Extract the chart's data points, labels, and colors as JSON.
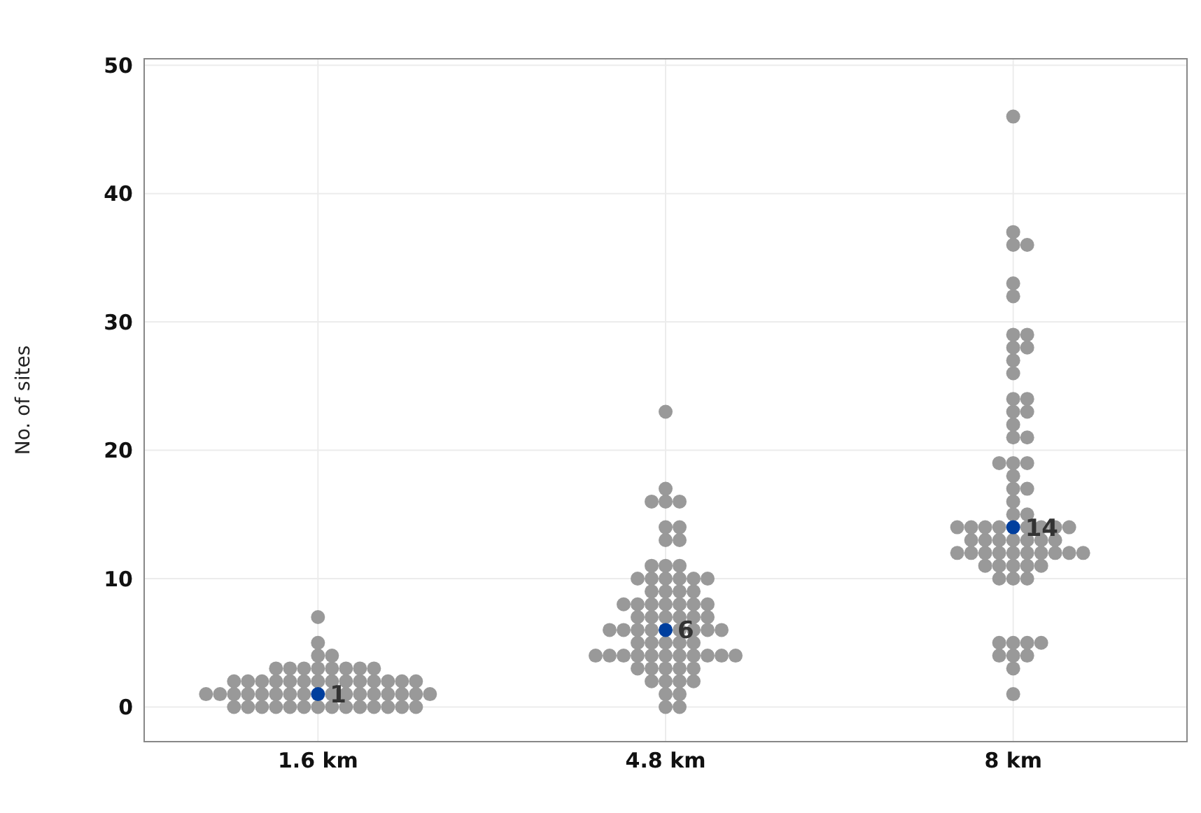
{
  "chart_data": {
    "type": "scatter",
    "ylabel": "No. of sites",
    "categories": [
      "1.6 km",
      "4.8 km",
      "8 km"
    ],
    "ylim": [
      -2.7,
      50.5
    ],
    "yticks": [
      0,
      10,
      20,
      30,
      40,
      50
    ],
    "grid": true,
    "marker": "circle",
    "series": [
      {
        "color": "#999999",
        "x": [
          "1.6 km",
          "1.6 km",
          "1.6 km",
          "1.6 km",
          "1.6 km",
          "1.6 km",
          "1.6 km",
          "1.6 km",
          "1.6 km",
          "1.6 km",
          "1.6 km",
          "1.6 km",
          "1.6 km",
          "1.6 km",
          "1.6 km",
          "1.6 km",
          "1.6 km",
          "1.6 km",
          "1.6 km",
          "1.6 km",
          "1.6 km",
          "1.6 km",
          "1.6 km",
          "1.6 km",
          "1.6 km",
          "1.6 km",
          "1.6 km",
          "1.6 km",
          "1.6 km",
          "1.6 km",
          "1.6 km",
          "1.6 km",
          "1.6 km",
          "1.6 km",
          "1.6 km",
          "1.6 km",
          "1.6 km",
          "1.6 km",
          "1.6 km",
          "1.6 km",
          "1.6 km",
          "1.6 km",
          "1.6 km",
          "1.6 km",
          "1.6 km",
          "1.6 km",
          "1.6 km",
          "1.6 km",
          "1.6 km",
          "1.6 km",
          "1.6 km",
          "1.6 km",
          "1.6 km",
          "1.6 km",
          "1.6 km",
          "1.6 km"
        ],
        "values": [
          0,
          0,
          0,
          0,
          0,
          0,
          0,
          0,
          0,
          0,
          0,
          0,
          0,
          0,
          1,
          1,
          1,
          1,
          1,
          1,
          1,
          1,
          1,
          1,
          1,
          1,
          1,
          1,
          1,
          1,
          2,
          2,
          2,
          2,
          2,
          2,
          2,
          2,
          2,
          2,
          2,
          2,
          2,
          2,
          3,
          3,
          3,
          3,
          3,
          3,
          3,
          3,
          4,
          4,
          5,
          7
        ]
      },
      {
        "color": "#999999",
        "x": [
          "4.8 km",
          "4.8 km",
          "4.8 km",
          "4.8 km",
          "4.8 km",
          "4.8 km",
          "4.8 km",
          "4.8 km",
          "4.8 km",
          "4.8 km",
          "4.8 km",
          "4.8 km",
          "4.8 km",
          "4.8 km",
          "4.8 km",
          "4.8 km",
          "4.8 km",
          "4.8 km",
          "4.8 km",
          "4.8 km",
          "4.8 km",
          "4.8 km",
          "4.8 km",
          "4.8 km",
          "4.8 km",
          "4.8 km",
          "4.8 km",
          "4.8 km",
          "4.8 km",
          "4.8 km",
          "4.8 km",
          "4.8 km",
          "4.8 km",
          "4.8 km",
          "4.8 km",
          "4.8 km",
          "4.8 km",
          "4.8 km",
          "4.8 km",
          "4.8 km",
          "4.8 km",
          "4.8 km",
          "4.8 km",
          "4.8 km",
          "4.8 km",
          "4.8 km",
          "4.8 km",
          "4.8 km",
          "4.8 km",
          "4.8 km",
          "4.8 km",
          "4.8 km",
          "4.8 km",
          "4.8 km",
          "4.8 km",
          "4.8 km",
          "4.8 km",
          "4.8 km",
          "4.8 km",
          "4.8 km",
          "4.8 km",
          "4.8 km",
          "4.8 km",
          "4.8 km",
          "4.8 km",
          "4.8 km",
          "4.8 km",
          "4.8 km",
          "4.8 km",
          "4.8 km",
          "4.8 km",
          "4.8 km"
        ],
        "values": [
          0,
          0,
          1,
          1,
          2,
          2,
          2,
          2,
          3,
          3,
          3,
          3,
          3,
          4,
          4,
          4,
          4,
          4,
          4,
          4,
          4,
          4,
          4,
          4,
          5,
          5,
          5,
          5,
          5,
          6,
          6,
          6,
          6,
          6,
          6,
          6,
          6,
          7,
          7,
          7,
          7,
          7,
          7,
          8,
          8,
          8,
          8,
          8,
          8,
          8,
          9,
          9,
          9,
          9,
          10,
          10,
          10,
          10,
          10,
          10,
          11,
          11,
          11,
          13,
          13,
          14,
          14,
          16,
          16,
          16,
          17,
          23
        ]
      },
      {
        "color": "#999999",
        "x": [
          "8 km",
          "8 km",
          "8 km",
          "8 km",
          "8 km",
          "8 km",
          "8 km",
          "8 km",
          "8 km",
          "8 km",
          "8 km",
          "8 km",
          "8 km",
          "8 km",
          "8 km",
          "8 km",
          "8 km",
          "8 km",
          "8 km",
          "8 km",
          "8 km",
          "8 km",
          "8 km",
          "8 km",
          "8 km",
          "8 km",
          "8 km",
          "8 km",
          "8 km",
          "8 km",
          "8 km",
          "8 km",
          "8 km",
          "8 km",
          "8 km",
          "8 km",
          "8 km",
          "8 km",
          "8 km",
          "8 km",
          "8 km",
          "8 km",
          "8 km",
          "8 km",
          "8 km",
          "8 km",
          "8 km",
          "8 km",
          "8 km",
          "8 km",
          "8 km",
          "8 km",
          "8 km",
          "8 km",
          "8 km",
          "8 km",
          "8 km",
          "8 km",
          "8 km",
          "8 km",
          "8 km",
          "8 km",
          "8 km",
          "8 km",
          "8 km",
          "8 km",
          "8 km",
          "8 km",
          "8 km",
          "8 km"
        ],
        "values": [
          1,
          3,
          4,
          4,
          4,
          5,
          5,
          5,
          5,
          10,
          10,
          10,
          11,
          11,
          11,
          11,
          11,
          12,
          12,
          12,
          12,
          12,
          12,
          12,
          12,
          12,
          12,
          13,
          13,
          13,
          13,
          13,
          13,
          13,
          14,
          14,
          14,
          14,
          14,
          14,
          14,
          14,
          15,
          15,
          16,
          17,
          17,
          18,
          19,
          19,
          19,
          21,
          21,
          22,
          23,
          23,
          24,
          24,
          26,
          27,
          28,
          28,
          29,
          29,
          32,
          33,
          36,
          36,
          37,
          46
        ]
      },
      {
        "color": "#003f9e",
        "x": [
          "1.6 km",
          "4.8 km",
          "8 km"
        ],
        "values": [
          1,
          6,
          14
        ],
        "value_labels": [
          "1",
          "6",
          "14"
        ]
      }
    ]
  }
}
